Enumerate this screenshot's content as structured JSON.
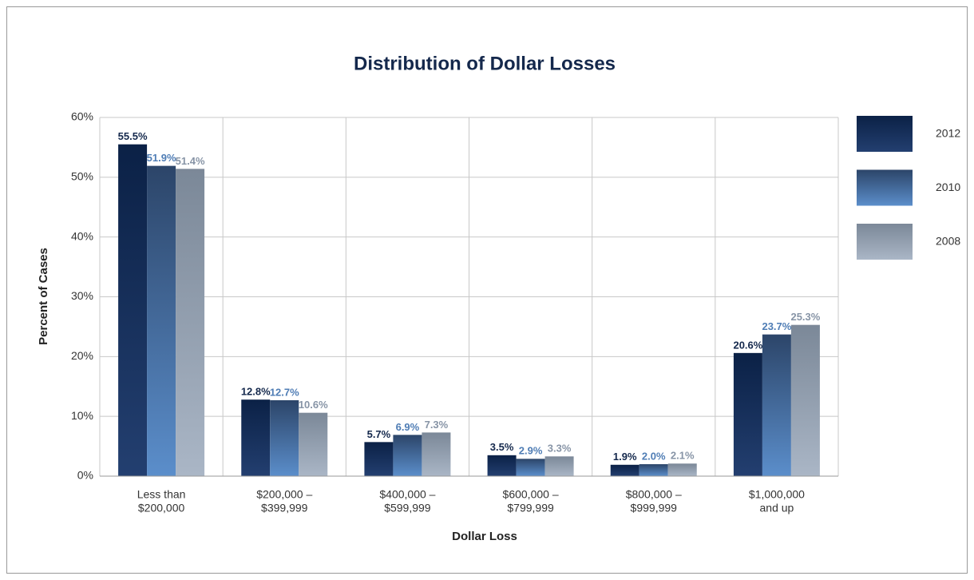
{
  "chart_data": {
    "type": "bar",
    "title": "Distribution of Dollar Losses",
    "x_label": "Dollar Loss",
    "y_label": "Percent of Cases",
    "categories": [
      [
        "Less than",
        "$200,000"
      ],
      [
        "$200,000 –",
        "$399,999"
      ],
      [
        "$400,000 –",
        "$599,999"
      ],
      [
        "$600,000 –",
        "$799,999"
      ],
      [
        "$800,000 –",
        "$999,999"
      ],
      [
        "$1,000,000",
        "and up"
      ]
    ],
    "series": [
      {
        "name": "2012",
        "color": "#14284c",
        "gradient": [
          "#0b2146",
          "#233f70"
        ],
        "values": [
          55.5,
          12.8,
          5.7,
          3.5,
          1.9,
          20.6
        ],
        "value_labels": [
          "55.5%",
          "12.8%",
          "5.7%",
          "3.5%",
          "1.9%",
          "20.6%"
        ]
      },
      {
        "name": "2010",
        "color": "#4f7db5",
        "gradient": [
          "#2c4569",
          "#5b8ecb"
        ],
        "values": [
          51.9,
          12.7,
          6.9,
          2.9,
          2.0,
          23.7
        ],
        "value_labels": [
          "51.9%",
          "12.7%",
          "6.9%",
          "2.9%",
          "2.0%",
          "23.7%"
        ]
      },
      {
        "name": "2008",
        "color": "#8794a6",
        "gradient": [
          "#7b8898",
          "#aab6c6"
        ],
        "values": [
          51.4,
          10.6,
          7.3,
          3.3,
          2.1,
          25.3
        ],
        "value_labels": [
          "51.4%",
          "10.6%",
          "7.3%",
          "3.3%",
          "2.1%",
          "25.3%"
        ]
      }
    ],
    "ylim": [
      0,
      60
    ],
    "yticks": [
      {
        "value": 0,
        "label": "0%"
      },
      {
        "value": 10,
        "label": "10%"
      },
      {
        "value": 20,
        "label": "20%"
      },
      {
        "value": 30,
        "label": "30%"
      },
      {
        "value": 40,
        "label": "40%"
      },
      {
        "value": 50,
        "label": "50%"
      },
      {
        "value": 60,
        "label": "60%"
      }
    ],
    "grid": true,
    "legend": "right"
  }
}
